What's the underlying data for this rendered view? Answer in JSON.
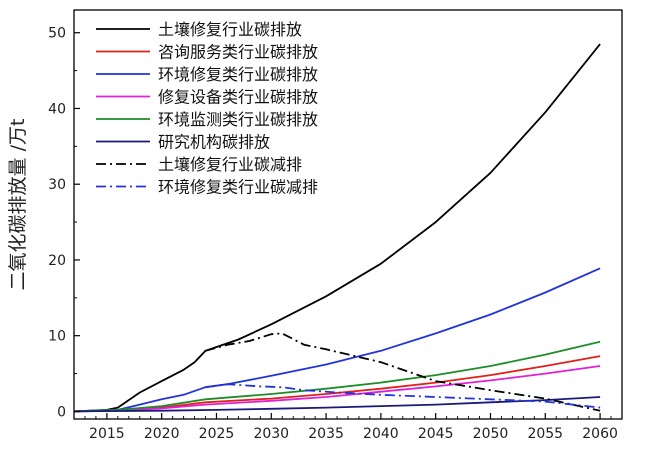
{
  "chart_data": {
    "type": "line",
    "title": "",
    "xlabel": "",
    "ylabel": "二氧化碳排放量 /万t",
    "xlim": [
      2012,
      2062
    ],
    "ylim": [
      -1,
      53
    ],
    "xticks": [
      2015,
      2020,
      2025,
      2030,
      2035,
      2040,
      2045,
      2050,
      2055,
      2060
    ],
    "yticks": [
      0,
      10,
      20,
      30,
      40,
      50
    ],
    "grid": false,
    "legend_position": "top-left",
    "series": [
      {
        "name": "土壤修复行业碳排放",
        "color": "#000000",
        "dash": "solid",
        "x": [
          2012,
          2015,
          2016,
          2018,
          2020,
          2022,
          2023,
          2024,
          2025,
          2027,
          2030,
          2035,
          2040,
          2045,
          2050,
          2055,
          2060
        ],
        "y": [
          0,
          0.2,
          0.5,
          2.5,
          4,
          5.5,
          6.5,
          8,
          8.5,
          9.5,
          11.5,
          15.2,
          19.5,
          25,
          31.5,
          39.5,
          48.5
        ]
      },
      {
        "name": "咨询服务类行业碳排放",
        "color": "#e0201b",
        "dash": "solid",
        "x": [
          2012,
          2016,
          2020,
          2024,
          2030,
          2035,
          2040,
          2045,
          2050,
          2055,
          2060
        ],
        "y": [
          0,
          0.1,
          0.5,
          1.2,
          1.7,
          2.3,
          3.0,
          3.8,
          4.8,
          6.0,
          7.3
        ]
      },
      {
        "name": "环境修复类行业碳排放",
        "color": "#2233dd",
        "dash": "solid",
        "x": [
          2012,
          2016,
          2018,
          2020,
          2022,
          2024,
          2026,
          2030,
          2035,
          2040,
          2045,
          2050,
          2055,
          2060
        ],
        "y": [
          0,
          0.2,
          0.9,
          1.6,
          2.2,
          3.2,
          3.6,
          4.7,
          6.2,
          8.0,
          10.3,
          12.8,
          15.7,
          18.9
        ]
      },
      {
        "name": "修复设备类行业碳排放",
        "color": "#e020d8",
        "dash": "solid",
        "x": [
          2012,
          2016,
          2020,
          2024,
          2030,
          2035,
          2040,
          2045,
          2050,
          2055,
          2060
        ],
        "y": [
          0,
          0.1,
          0.4,
          0.9,
          1.4,
          1.9,
          2.6,
          3.3,
          4.1,
          5.0,
          6.0
        ]
      },
      {
        "name": "环境监测类行业碳排放",
        "color": "#1e8c28",
        "dash": "solid",
        "x": [
          2012,
          2016,
          2020,
          2024,
          2030,
          2035,
          2040,
          2045,
          2050,
          2055,
          2060
        ],
        "y": [
          0,
          0.2,
          0.7,
          1.6,
          2.3,
          3.0,
          3.8,
          4.8,
          6.0,
          7.5,
          9.2
        ]
      },
      {
        "name": "研究机构碳排放",
        "color": "#1a1a7a",
        "dash": "solid",
        "x": [
          2012,
          2016,
          2020,
          2025,
          2030,
          2035,
          2040,
          2045,
          2050,
          2055,
          2060
        ],
        "y": [
          0,
          0.05,
          0.1,
          0.2,
          0.35,
          0.5,
          0.7,
          0.9,
          1.2,
          1.5,
          1.9
        ]
      },
      {
        "name": "土壤修复行业碳减排",
        "color": "#000000",
        "dash": "dashdot",
        "x": [
          2024,
          2026,
          2028,
          2030,
          2031,
          2033,
          2035,
          2040,
          2045,
          2050,
          2055,
          2060
        ],
        "y": [
          8,
          8.8,
          9.3,
          10.2,
          10.3,
          8.8,
          8.2,
          6.5,
          4.0,
          2.8,
          1.7,
          0.1
        ]
      },
      {
        "name": "环境修复类行业碳减排",
        "color": "#2233dd",
        "dash": "dashdot",
        "x": [
          2024,
          2026,
          2029,
          2031,
          2033,
          2036,
          2040,
          2045,
          2050,
          2055,
          2060
        ],
        "y": [
          3.2,
          3.6,
          3.3,
          3.2,
          2.8,
          2.5,
          2.2,
          1.9,
          1.6,
          1.3,
          0.5
        ]
      }
    ]
  }
}
